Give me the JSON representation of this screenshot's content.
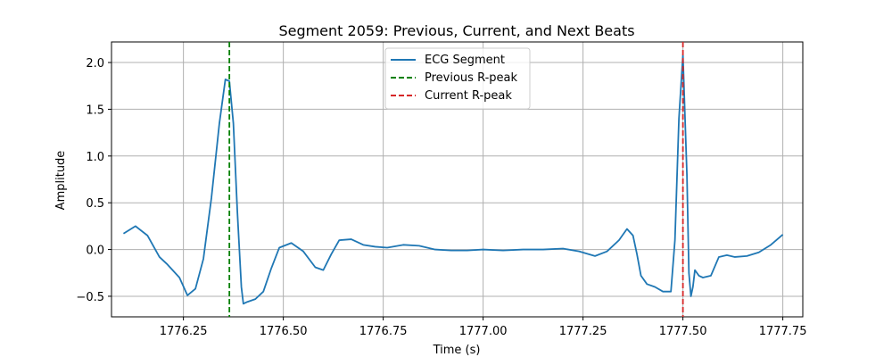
{
  "chart_data": {
    "type": "line",
    "title": "Segment 2059: Previous, Current, and Next Beats",
    "xlabel": "Time (s)",
    "ylabel": "Amplitude",
    "xlim": [
      1776.07,
      1777.8
    ],
    "ylim": [
      -0.72,
      2.22
    ],
    "grid": true,
    "legend_position": "top-center",
    "x_ticks": [
      1776.25,
      1776.5,
      1776.75,
      1777.0,
      1777.25,
      1777.5,
      1777.75
    ],
    "x_tick_labels": [
      "1776.25",
      "1776.50",
      "1776.75",
      "1777.00",
      "1777.25",
      "1777.50",
      "1777.75"
    ],
    "y_ticks": [
      -0.5,
      0.0,
      0.5,
      1.0,
      1.5,
      2.0
    ],
    "y_tick_labels": [
      "−0.5",
      "0.0",
      "0.5",
      "1.0",
      "1.5",
      "2.0"
    ],
    "series": [
      {
        "name": "ECG Segment",
        "color": "#1f77b4",
        "style": "solid",
        "x": [
          1776.1,
          1776.13,
          1776.16,
          1776.19,
          1776.21,
          1776.24,
          1776.26,
          1776.28,
          1776.3,
          1776.32,
          1776.34,
          1776.355,
          1776.365,
          1776.375,
          1776.385,
          1776.395,
          1776.4,
          1776.41,
          1776.43,
          1776.45,
          1776.47,
          1776.49,
          1776.52,
          1776.55,
          1776.58,
          1776.6,
          1776.62,
          1776.64,
          1776.67,
          1776.7,
          1776.73,
          1776.76,
          1776.8,
          1776.84,
          1776.88,
          1776.92,
          1776.96,
          1777.0,
          1777.05,
          1777.1,
          1777.15,
          1777.2,
          1777.24,
          1777.28,
          1777.31,
          1777.34,
          1777.36,
          1777.375,
          1777.385,
          1777.395,
          1777.41,
          1777.43,
          1777.45,
          1777.47,
          1777.48,
          1777.49,
          1777.5,
          1777.51,
          1777.515,
          1777.52,
          1777.525,
          1777.53,
          1777.535,
          1777.54,
          1777.55,
          1777.57,
          1777.59,
          1777.61,
          1777.63,
          1777.66,
          1777.69,
          1777.72,
          1777.75
        ],
        "y": [
          0.17,
          0.25,
          0.15,
          -0.08,
          -0.16,
          -0.3,
          -0.49,
          -0.42,
          -0.1,
          0.55,
          1.35,
          1.82,
          1.8,
          1.35,
          0.4,
          -0.4,
          -0.58,
          -0.56,
          -0.53,
          -0.45,
          -0.2,
          0.02,
          0.07,
          -0.02,
          -0.19,
          -0.22,
          -0.05,
          0.1,
          0.11,
          0.05,
          0.03,
          0.02,
          0.05,
          0.04,
          0.0,
          -0.01,
          -0.01,
          0.0,
          -0.01,
          0.0,
          0.0,
          0.01,
          -0.02,
          -0.07,
          -0.02,
          0.1,
          0.22,
          0.15,
          -0.05,
          -0.28,
          -0.37,
          -0.4,
          -0.45,
          -0.45,
          0.1,
          1.4,
          2.08,
          0.8,
          -0.25,
          -0.5,
          -0.4,
          -0.22,
          -0.25,
          -0.28,
          -0.3,
          -0.28,
          -0.08,
          -0.06,
          -0.08,
          -0.07,
          -0.03,
          0.05,
          0.16
        ]
      },
      {
        "name": "Previous R-peak",
        "color": "#008000",
        "style": "dashed",
        "x_value": 1776.365
      },
      {
        "name": "Current R-peak",
        "color": "#d62728",
        "style": "dashed",
        "x_value": 1777.5
      }
    ]
  }
}
